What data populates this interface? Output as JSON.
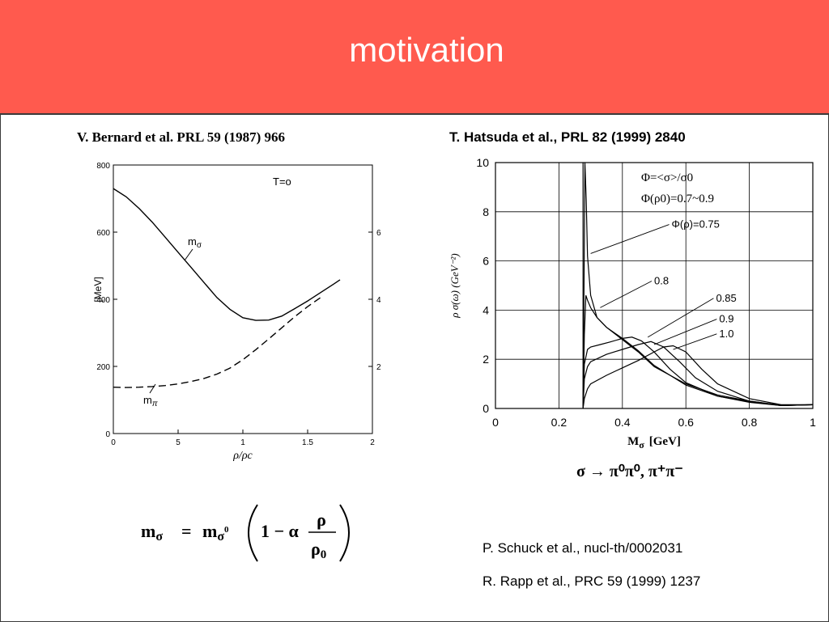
{
  "slide": {
    "title": "motivation",
    "left_citation": "V. Bernard et al. PRL 59 (1987) 966",
    "right_citation": "T. Hatsuda et al., PRL 82 (1999) 2840",
    "decay_label": "σ → π⁰π⁰, π⁺π⁻",
    "formula": {
      "lhs": "m",
      "lhs_sub": "σ",
      "rhs_m": "m",
      "rhs_sub": "σ",
      "rhs_sup": "0",
      "one_minus_alpha": "1 − α",
      "numerator": "ρ",
      "denominator": "ρ",
      "denominator_sub": "0"
    },
    "refs": [
      "P. Schuck et al., nucl-th/0002031",
      "R. Rapp et al., PRC 59 (1999) 1237"
    ]
  },
  "chart_data": [
    {
      "type": "line",
      "annotation": "T=o",
      "xlabel": "ρ/ρc",
      "ylabel": "[MeV]",
      "xlim": [
        0,
        2
      ],
      "ylim": [
        0,
        800
      ],
      "x_ticks": [
        "0",
        "5",
        "1",
        "1.5",
        "2"
      ],
      "y_ticks": [
        "0",
        "200",
        "400",
        "600",
        "800"
      ],
      "right_ticks": [
        "2",
        "4",
        "6"
      ],
      "series": [
        {
          "name": "mσ",
          "label_main": "m",
          "label_sub": "σ",
          "style": "solid",
          "x": [
            0,
            0.1,
            0.2,
            0.3,
            0.4,
            0.5,
            0.6,
            0.7,
            0.8,
            0.9,
            1.0,
            1.1,
            1.2,
            1.3,
            1.4,
            1.5,
            1.6,
            1.7,
            1.75
          ],
          "y": [
            730,
            705,
            670,
            630,
            585,
            540,
            495,
            450,
            405,
            370,
            345,
            337,
            338,
            350,
            372,
            395,
            420,
            445,
            458
          ]
        },
        {
          "name": "mπ",
          "label_main": "m",
          "label_sub": "π",
          "style": "dashed",
          "x": [
            0,
            0.1,
            0.2,
            0.3,
            0.4,
            0.5,
            0.6,
            0.7,
            0.8,
            0.9,
            1.0,
            1.1,
            1.2,
            1.3,
            1.4,
            1.5,
            1.6
          ],
          "y": [
            138,
            137,
            138,
            140,
            143,
            148,
            155,
            164,
            177,
            195,
            220,
            250,
            282,
            315,
            348,
            378,
            405
          ]
        }
      ]
    },
    {
      "type": "line",
      "xlabel": "Mσ [GeV]",
      "xlabel_main": "M",
      "xlabel_sub": "σ",
      "xlabel_unit": "[GeV]",
      "ylabel": "ρ σ(ω)  (GeV⁻²)",
      "xlim": [
        0,
        1
      ],
      "ylim": [
        0,
        10
      ],
      "x_ticks": [
        "0",
        "0.2",
        "0.4",
        "0.6",
        "0.8",
        "1"
      ],
      "y_ticks": [
        "0",
        "2",
        "4",
        "6",
        "8",
        "10"
      ],
      "legend_text": [
        "Φ=<σ>/σ0",
        "Φ(ρ0)=0.7~0.9"
      ],
      "grid": true,
      "series": [
        {
          "name": "Φ(ρ)=0.75",
          "x": [
            0.276,
            0.279,
            0.282,
            0.286,
            0.29,
            0.3,
            0.32,
            0.35,
            0.4,
            0.45,
            0.5,
            0.6,
            0.7,
            0.8,
            0.9,
            1.0
          ],
          "y": [
            0,
            5,
            10,
            8.5,
            6.2,
            4.6,
            3.7,
            3.3,
            2.8,
            2.3,
            1.7,
            1.0,
            0.55,
            0.3,
            0.12,
            0.15
          ]
        },
        {
          "name": "0.8",
          "x": [
            0.276,
            0.28,
            0.285,
            0.29,
            0.3,
            0.32,
            0.35,
            0.4,
            0.45,
            0.5,
            0.6,
            0.7,
            0.8,
            0.9,
            1.0
          ],
          "y": [
            0,
            3.0,
            4.6,
            4.4,
            4.1,
            3.7,
            3.3,
            2.85,
            2.35,
            1.75,
            0.95,
            0.5,
            0.28,
            0.12,
            0.15
          ]
        },
        {
          "name": "0.85",
          "x": [
            0.276,
            0.28,
            0.29,
            0.3,
            0.33,
            0.36,
            0.4,
            0.43,
            0.46,
            0.5,
            0.55,
            0.6,
            0.7,
            0.8,
            0.9,
            1.0
          ],
          "y": [
            0,
            1.8,
            2.4,
            2.5,
            2.6,
            2.7,
            2.85,
            2.9,
            2.75,
            2.3,
            1.6,
            1.05,
            0.5,
            0.25,
            0.12,
            0.15
          ]
        },
        {
          "name": "0.9",
          "x": [
            0.276,
            0.28,
            0.29,
            0.3,
            0.35,
            0.4,
            0.45,
            0.49,
            0.53,
            0.58,
            0.63,
            0.7,
            0.8,
            0.9,
            1.0
          ],
          "y": [
            0,
            1.2,
            1.7,
            1.9,
            2.2,
            2.4,
            2.6,
            2.72,
            2.5,
            1.9,
            1.25,
            0.7,
            0.3,
            0.13,
            0.15
          ]
        },
        {
          "name": "1.0",
          "x": [
            0.276,
            0.28,
            0.29,
            0.3,
            0.35,
            0.4,
            0.45,
            0.5,
            0.53,
            0.56,
            0.6,
            0.65,
            0.7,
            0.8,
            0.9,
            1.0
          ],
          "y": [
            0,
            0.4,
            0.8,
            1.0,
            1.35,
            1.65,
            1.95,
            2.3,
            2.5,
            2.55,
            2.3,
            1.6,
            1.0,
            0.4,
            0.15,
            0.15
          ]
        }
      ]
    }
  ]
}
